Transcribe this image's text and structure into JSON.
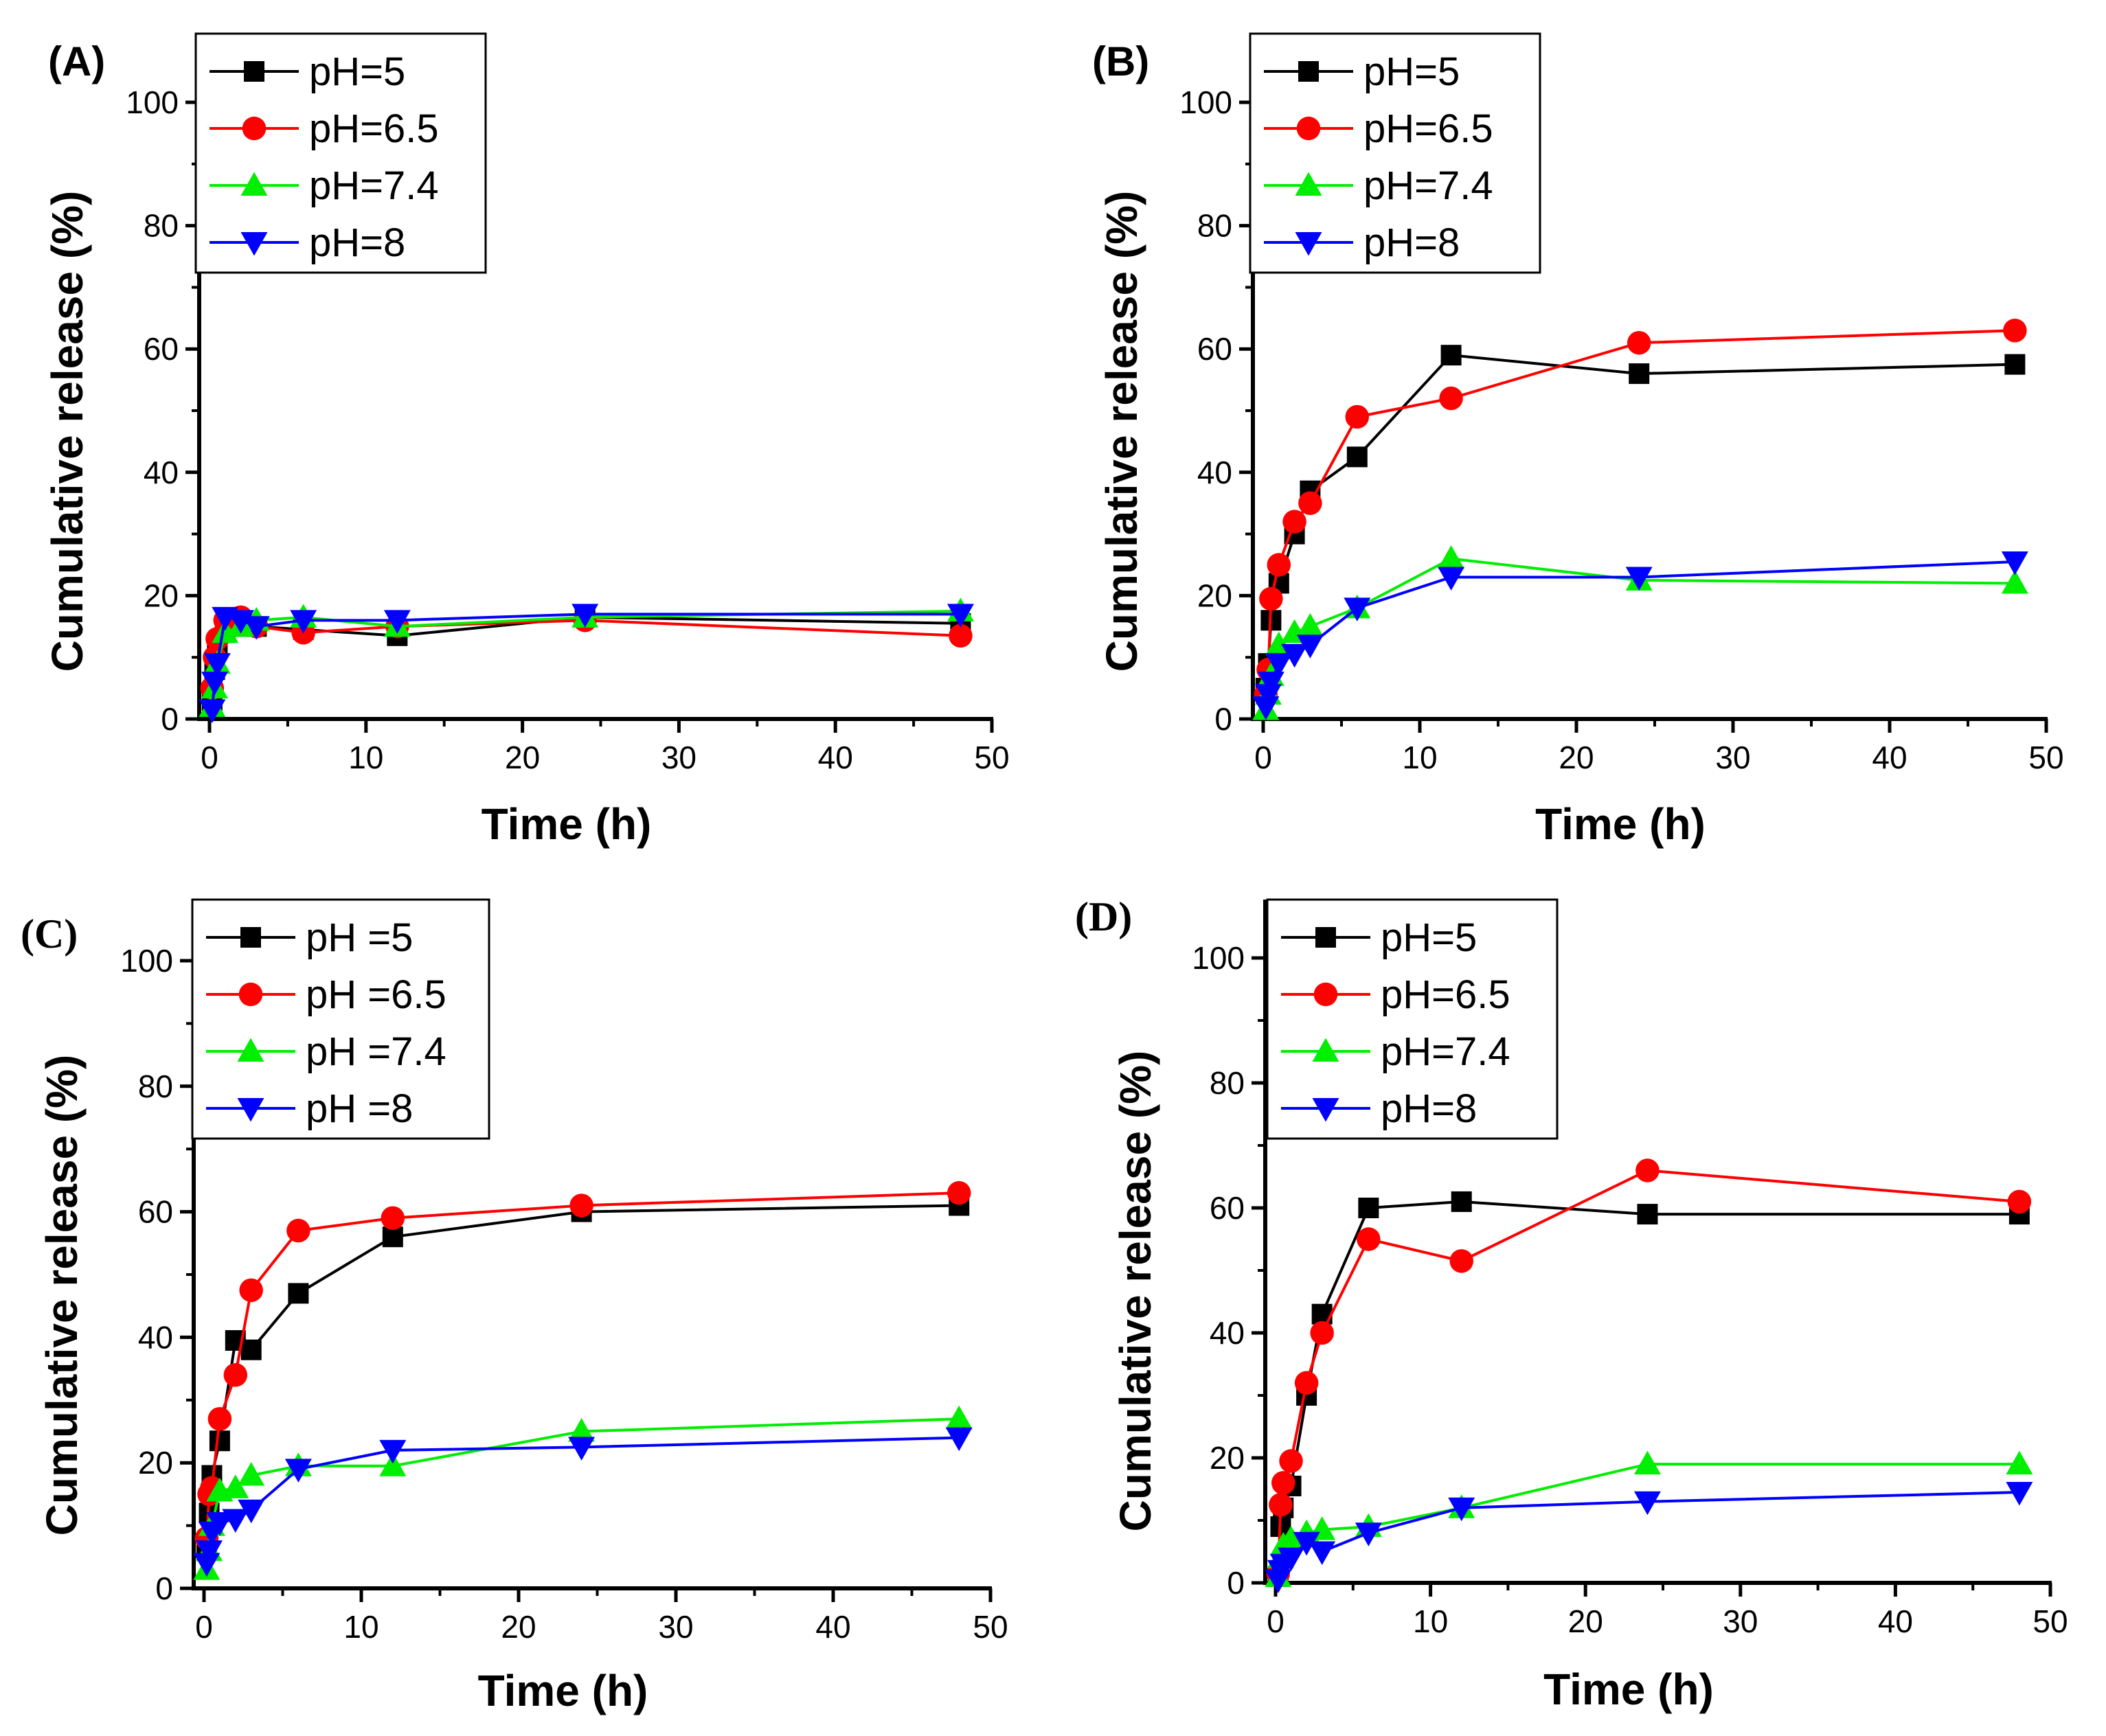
{
  "colors": {
    "pH5": "#000000",
    "pH6.5": "#ff0000",
    "pH7.4": "#00ee00",
    "pH8": "#0000ff"
  },
  "chart_data": [
    {
      "type": "line",
      "panel_label": "(A)",
      "xlabel": "Time (h)",
      "ylabel": "Cumulative release (%)",
      "xlim": [
        -1,
        50
      ],
      "ylim": [
        0,
        110
      ],
      "xticks": [
        "0",
        "10",
        "20",
        "30",
        "40",
        "50"
      ],
      "yticks": [
        "0",
        "20",
        "40",
        "60",
        "80",
        "100"
      ],
      "legend_placement": "top-left",
      "x": [
        0.17,
        0.33,
        0.5,
        1,
        2,
        3,
        6,
        12,
        24,
        48
      ],
      "series": [
        {
          "name": "pH=5",
          "marker": "square",
          "color": "#000000",
          "values": [
            3,
            8,
            12,
            14,
            15,
            15,
            14.5,
            13.5,
            16.5,
            15.5
          ]
        },
        {
          "name": "pH=6.5",
          "marker": "circle",
          "color": "#ff0000",
          "values": [
            5,
            10,
            13,
            16,
            16.5,
            15,
            14,
            15,
            16,
            13.5
          ]
        },
        {
          "name": "pH=7.4",
          "marker": "triangle-up",
          "color": "#00ee00",
          "values": [
            2,
            5,
            9,
            14,
            15,
            16,
            16.5,
            15,
            16.5,
            17.5
          ]
        },
        {
          "name": "pH=8",
          "marker": "triangle-down",
          "color": "#0000ff",
          "values": [
            1.5,
            6,
            9,
            16.5,
            16,
            15,
            16,
            16,
            17,
            17
          ]
        }
      ]
    },
    {
      "type": "line",
      "panel_label": "(B)",
      "xlabel": "Time (h)",
      "ylabel": "Cumulative release (%)",
      "xlim": [
        -1,
        50
      ],
      "ylim": [
        0,
        110
      ],
      "xticks": [
        "0",
        "10",
        "20",
        "30",
        "40",
        "50"
      ],
      "yticks": [
        "0",
        "20",
        "40",
        "60",
        "80",
        "100"
      ],
      "legend_placement": "top-left",
      "x": [
        0.17,
        0.33,
        0.5,
        1,
        2,
        3,
        6,
        12,
        24,
        48
      ],
      "series": [
        {
          "name": "pH=5",
          "marker": "square",
          "color": "#000000",
          "values": [
            5,
            9,
            16,
            22,
            30,
            37,
            42.5,
            59,
            56,
            57.5
          ]
        },
        {
          "name": "pH=6.5",
          "marker": "circle",
          "color": "#ff0000",
          "values": [
            4,
            8,
            19.5,
            25,
            32,
            35,
            49,
            52,
            61,
            63
          ]
        },
        {
          "name": "pH=7.4",
          "marker": "triangle-up",
          "color": "#00ee00",
          "values": [
            1.5,
            4,
            7,
            12,
            14,
            15,
            18,
            26,
            22.5,
            22
          ]
        },
        {
          "name": "pH=8",
          "marker": "triangle-down",
          "color": "#0000ff",
          "values": [
            2,
            4,
            6,
            9,
            10.5,
            12,
            18,
            23,
            23,
            25.5
          ]
        }
      ]
    },
    {
      "type": "line",
      "panel_label": "(C)",
      "xlabel": "Time (h)",
      "ylabel": "Cumulative release (%)",
      "xlim": [
        -1,
        50
      ],
      "ylim": [
        0,
        100
      ],
      "xticks": [
        "0",
        "10",
        "20",
        "30",
        "40",
        "50"
      ],
      "yticks": [
        "0",
        "20",
        "40",
        "60",
        "80",
        "100"
      ],
      "legend_placement": "top-left",
      "x": [
        0.17,
        0.33,
        0.5,
        1,
        2,
        3,
        6,
        12,
        24,
        48
      ],
      "series": [
        {
          "name": "pH =5",
          "marker": "square",
          "color": "#000000",
          "values": [
            6,
            12,
            18,
            23.5,
            39.5,
            38,
            47,
            56,
            60,
            61
          ]
        },
        {
          "name": "pH =6.5",
          "marker": "circle",
          "color": "#ff0000",
          "values": [
            8,
            15,
            16,
            27,
            34,
            47.5,
            57,
            59,
            61,
            63
          ]
        },
        {
          "name": "pH =7.4",
          "marker": "triangle-up",
          "color": "#00ee00",
          "values": [
            3,
            6,
            10,
            15.5,
            16,
            18,
            19.5,
            19.5,
            25,
            27
          ]
        },
        {
          "name": "pH =8",
          "marker": "triangle-down",
          "color": "#0000ff",
          "values": [
            4,
            6,
            9,
            10.5,
            11,
            12.5,
            19,
            22,
            22.5,
            24
          ]
        }
      ]
    },
    {
      "type": "line",
      "panel_label": "(D)",
      "xlabel": "Time (h)",
      "ylabel": "Cumulative release (%)",
      "xlim": [
        -1,
        50
      ],
      "ylim": [
        0,
        100
      ],
      "xticks": [
        "0",
        "10",
        "20",
        "30",
        "40",
        "50"
      ],
      "yticks": [
        "0",
        "20",
        "40",
        "60",
        "80",
        "100"
      ],
      "legend_placement": "top-left",
      "x": [
        0.17,
        0.33,
        0.5,
        1,
        2,
        3,
        6,
        12,
        24,
        48
      ],
      "series": [
        {
          "name": "pH=5",
          "marker": "square",
          "color": "#000000",
          "values": [
            1,
            9,
            12,
            15.5,
            30,
            43,
            60,
            61,
            59,
            59
          ]
        },
        {
          "name": "pH=6.5",
          "marker": "circle",
          "color": "#ff0000",
          "values": [
            1.5,
            12.5,
            16,
            19.5,
            32,
            40,
            55,
            51.5,
            66,
            61
          ]
        },
        {
          "name": "pH=7.4",
          "marker": "triangle-up",
          "color": "#00ee00",
          "values": [
            1,
            4,
            6,
            7,
            8,
            8.5,
            9,
            12,
            19,
            19
          ]
        },
        {
          "name": "pH=8",
          "marker": "triangle-down",
          "color": "#0000ff",
          "values": [
            0.5,
            2,
            3,
            4,
            6.5,
            5,
            8,
            12,
            13,
            14.5
          ]
        }
      ]
    }
  ]
}
